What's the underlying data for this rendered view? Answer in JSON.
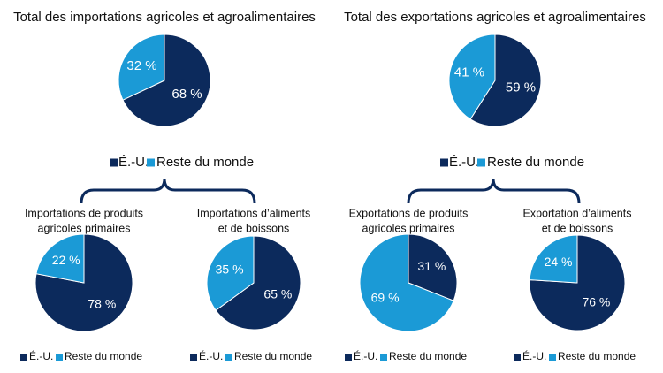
{
  "chart_data": [
    {
      "type": "pie",
      "title": [
        "Total des importations agricoles et agroalimentaires"
      ],
      "categories": [
        "É.-U.",
        "Reste du monde"
      ],
      "values": [
        68,
        32
      ],
      "value_labels": [
        "68 %",
        "32 %"
      ],
      "colors": [
        "#0c2a5c",
        "#1b9ad6"
      ]
    },
    {
      "type": "pie",
      "title": [
        "Total des exportations agricoles et agroalimentaires"
      ],
      "categories": [
        "É.-U.",
        "Reste du monde"
      ],
      "values": [
        59,
        41
      ],
      "value_labels": [
        "59 %",
        "41 %"
      ],
      "colors": [
        "#0c2a5c",
        "#1b9ad6"
      ]
    },
    {
      "type": "pie",
      "title": [
        "Importations de produits",
        "agricoles primaires"
      ],
      "categories": [
        "É.-U.",
        "Reste du monde"
      ],
      "values": [
        78,
        22
      ],
      "value_labels": [
        "78 %",
        "22 %"
      ],
      "colors": [
        "#0c2a5c",
        "#1b9ad6"
      ]
    },
    {
      "type": "pie",
      "title": [
        "Importations d’aliments",
        "et de boissons"
      ],
      "categories": [
        "É.-U.",
        "Reste du monde"
      ],
      "values": [
        65,
        35
      ],
      "value_labels": [
        "65 %",
        "35 %"
      ],
      "colors": [
        "#0c2a5c",
        "#1b9ad6"
      ]
    },
    {
      "type": "pie",
      "title": [
        "Exportations de produits",
        "agricoles primaires"
      ],
      "categories": [
        "É.-U.",
        "Reste du monde"
      ],
      "values": [
        31,
        69
      ],
      "value_labels": [
        "31 %",
        "69 %"
      ],
      "colors": [
        "#0c2a5c",
        "#1b9ad6"
      ]
    },
    {
      "type": "pie",
      "title": [
        "Exportation d’aliments",
        "et de boissons"
      ],
      "categories": [
        "É.-U.",
        "Reste du monde"
      ],
      "values": [
        76,
        24
      ],
      "value_labels": [
        "76 %",
        "24 %"
      ],
      "colors": [
        "#0c2a5c",
        "#1b9ad6"
      ]
    }
  ]
}
